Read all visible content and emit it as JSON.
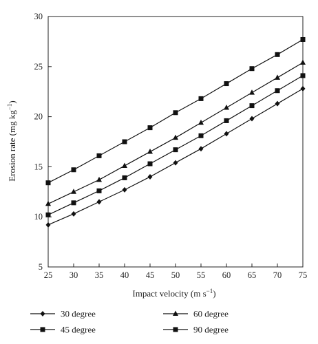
{
  "chart_data": {
    "type": "line",
    "xlabel": "Impact velocity (m s",
    "xlabel_exp": "−1",
    "xlabel_end": ")",
    "ylabel": "Erosion rate (mg kg",
    "ylabel_exp": "−1",
    "ylabel_end": ")",
    "xlim": [
      25,
      75
    ],
    "ylim": [
      5,
      30
    ],
    "x_ticks": [
      25,
      30,
      35,
      40,
      45,
      50,
      55,
      60,
      65,
      70,
      75
    ],
    "y_ticks": [
      5,
      10,
      15,
      20,
      25,
      30
    ],
    "grid": false,
    "legend_position": "bottom",
    "x": [
      25,
      30,
      35,
      40,
      45,
      50,
      55,
      60,
      65,
      70,
      75
    ],
    "series": [
      {
        "name": "30 degree",
        "marker": "diamond",
        "values": [
          9.2,
          10.3,
          11.5,
          12.7,
          14.0,
          15.4,
          16.8,
          18.3,
          19.8,
          21.3,
          22.8
        ]
      },
      {
        "name": "60 degree",
        "marker": "triangle",
        "values": [
          11.3,
          12.5,
          13.7,
          15.1,
          16.5,
          17.9,
          19.4,
          20.9,
          22.4,
          23.9,
          25.4
        ]
      },
      {
        "name": "45 degree",
        "marker": "square",
        "values": [
          10.2,
          11.4,
          12.6,
          13.9,
          15.3,
          16.7,
          18.1,
          19.6,
          21.1,
          22.6,
          24.1
        ]
      },
      {
        "name": "90 degree",
        "marker": "square",
        "values": [
          13.4,
          14.7,
          16.1,
          17.5,
          18.9,
          20.4,
          21.8,
          23.3,
          24.8,
          26.2,
          27.7
        ]
      }
    ]
  }
}
